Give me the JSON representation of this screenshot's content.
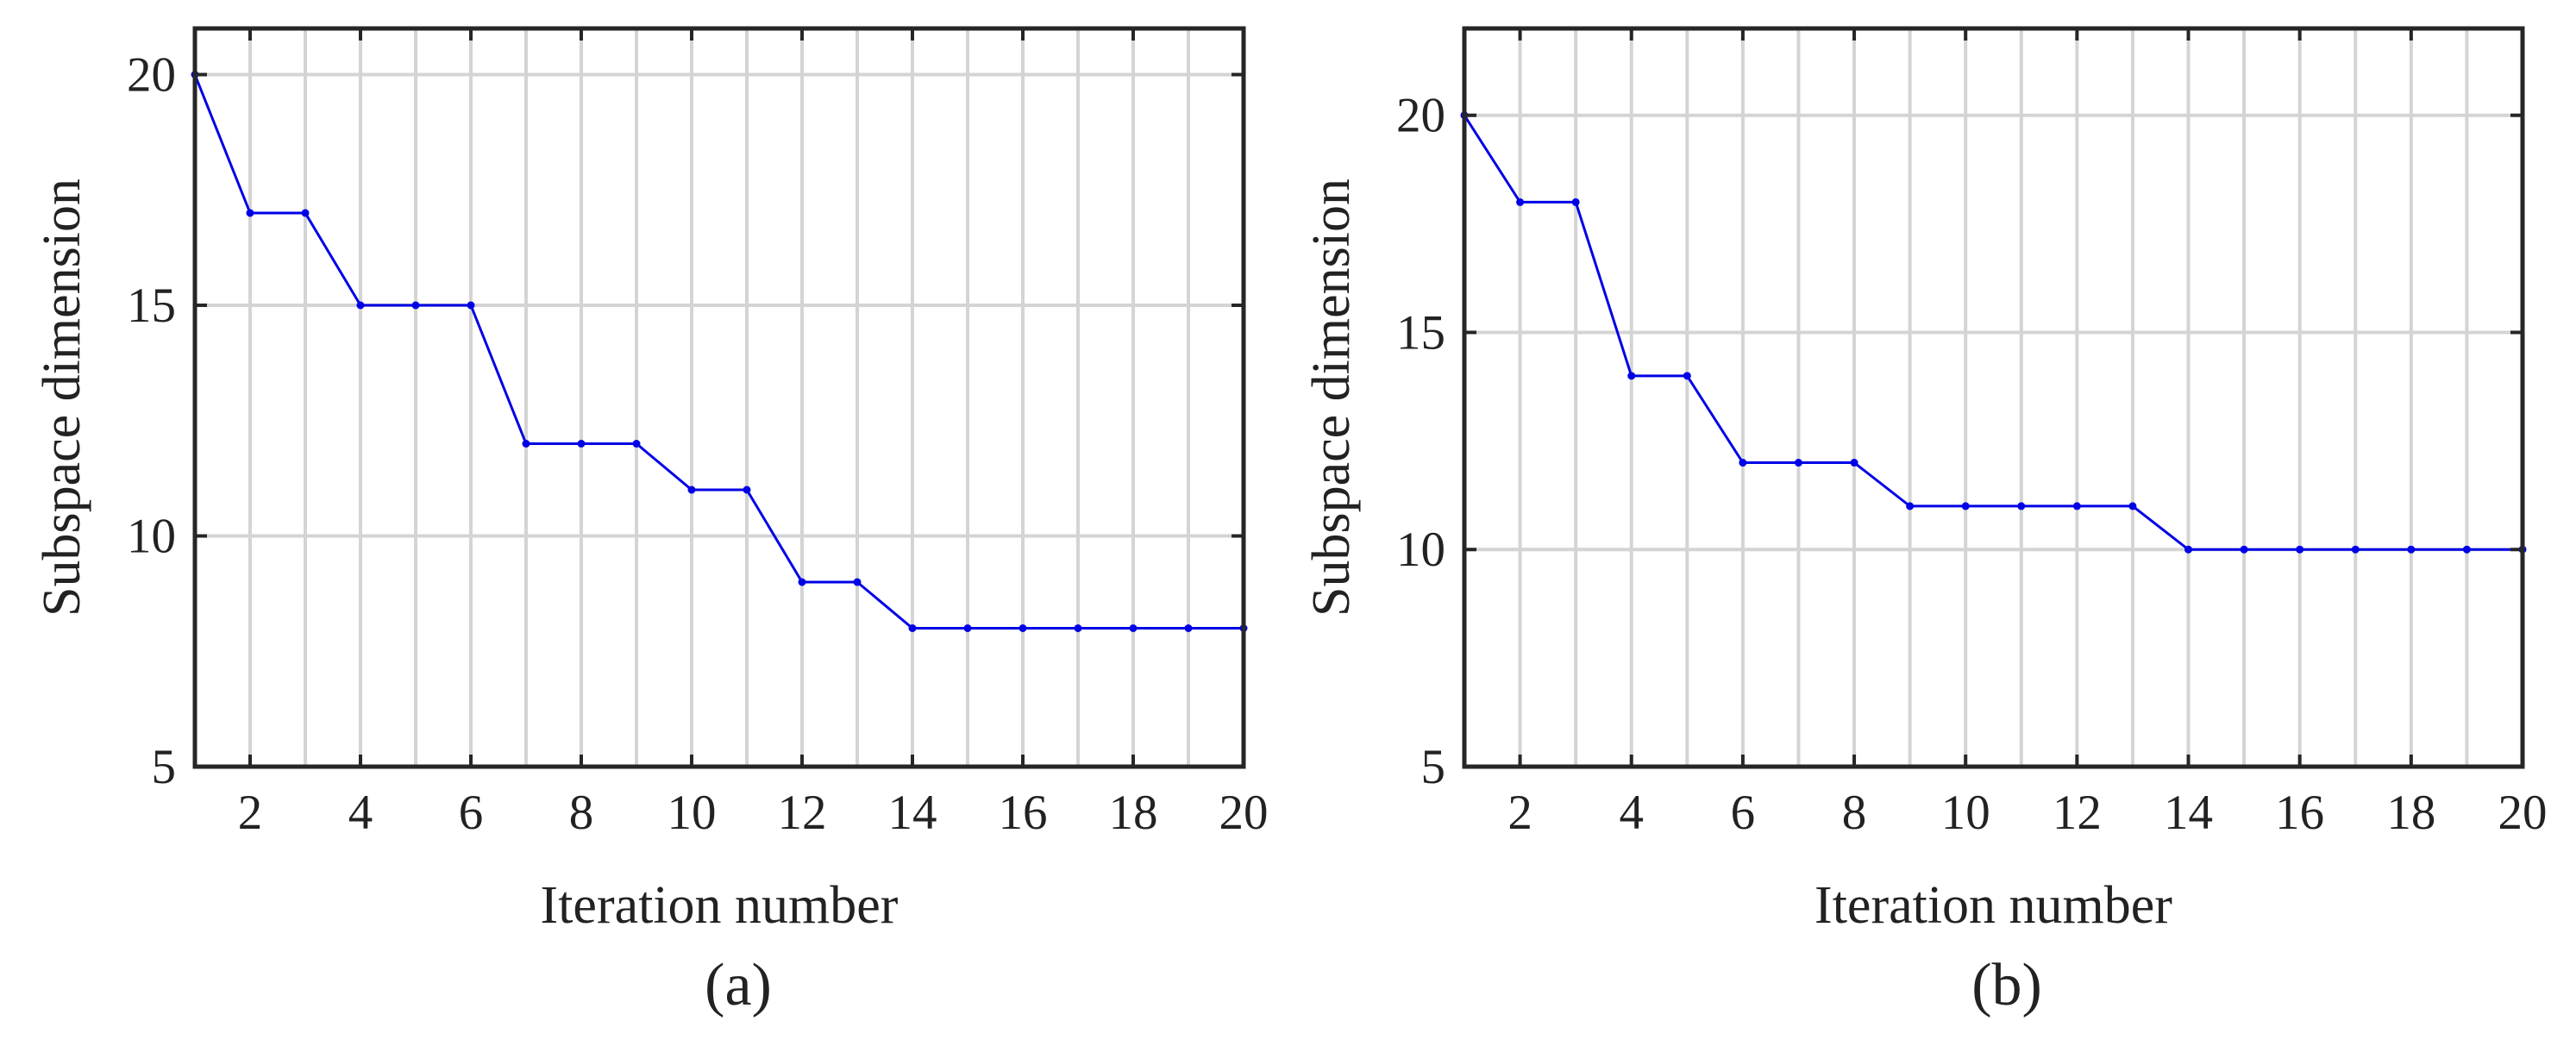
{
  "chart_data": [
    {
      "type": "line",
      "caption": "(a)",
      "xlabel": "Iteration number",
      "ylabel": "Subspace dimension",
      "xlim": [
        1,
        20
      ],
      "ylim": [
        5,
        21
      ],
      "xticks": [
        "2",
        "4",
        "6",
        "8",
        "10",
        "12",
        "14",
        "16",
        "18",
        "20"
      ],
      "yticks": [
        "5",
        "10",
        "15",
        "20"
      ],
      "grid": true,
      "series_color": "#0000e6",
      "x": [
        1,
        2,
        3,
        4,
        5,
        6,
        7,
        8,
        9,
        10,
        11,
        12,
        13,
        14,
        15,
        16,
        17,
        18,
        19,
        20
      ],
      "series": [
        {
          "values": [
            20,
            17,
            17,
            15,
            15,
            15,
            12,
            12,
            12,
            11,
            11,
            9,
            9,
            8,
            8,
            8,
            8,
            8,
            8,
            8
          ]
        }
      ]
    },
    {
      "type": "line",
      "caption": "(b)",
      "xlabel": "Iteration number",
      "ylabel": "Subspace dimension",
      "xlim": [
        1,
        20
      ],
      "ylim": [
        5,
        22
      ],
      "xticks": [
        "2",
        "4",
        "6",
        "8",
        "10",
        "12",
        "14",
        "16",
        "18",
        "20"
      ],
      "yticks": [
        "5",
        "10",
        "15",
        "20"
      ],
      "grid": true,
      "series_color": "#0000e6",
      "x": [
        1,
        2,
        3,
        4,
        5,
        6,
        7,
        8,
        9,
        10,
        11,
        12,
        13,
        14,
        15,
        16,
        17,
        18,
        19,
        20
      ],
      "series": [
        {
          "values": [
            20,
            18,
            18,
            14,
            14,
            12,
            12,
            12,
            11,
            11,
            11,
            11,
            11,
            10,
            10,
            10,
            10,
            10,
            10,
            10
          ]
        }
      ]
    }
  ]
}
